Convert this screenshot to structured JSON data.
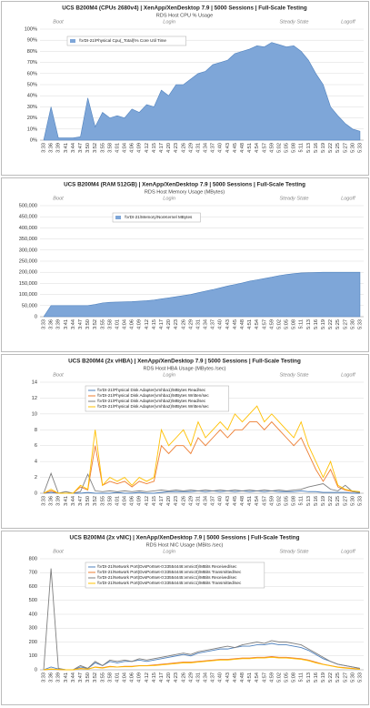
{
  "chart_data": [
    {
      "type": "area",
      "title": "UCS B200M4 (CPUs 2680v4) | XenApp/XenDesktop 7.9 | 5000 Sessions | Full-Scale Testing",
      "subtitle": "RDS Host CPU % Usage",
      "phases": [
        "Boot",
        "Login",
        "Steady State",
        "Logoff"
      ],
      "categories": [
        "3:33",
        "3:36",
        "3:39",
        "3:41",
        "3:44",
        "3:47",
        "3:50",
        "3:52",
        "3:55",
        "3:58",
        "4:01",
        "4:04",
        "4:06",
        "4:09",
        "4:12",
        "4:15",
        "4:17",
        "4:20",
        "4:23",
        "4:26",
        "4:29",
        "4:31",
        "4:34",
        "4:37",
        "4:40",
        "4:43",
        "4:45",
        "4:48",
        "4:51",
        "4:54",
        "4:57",
        "4:59",
        "5:02",
        "5:05",
        "5:08",
        "5:11",
        "5:13",
        "5:16",
        "5:19",
        "5:22",
        "5:25",
        "5:27",
        "5:30",
        "5:33"
      ],
      "series": [
        {
          "name": "\\\\VDI-21\\Physical Cpu(_Total)\\% Core Util Time",
          "color": "#7ea6d8",
          "values": [
            0,
            30,
            2,
            2,
            2,
            3,
            38,
            12,
            25,
            20,
            22,
            20,
            28,
            25,
            32,
            30,
            45,
            40,
            50,
            50,
            55,
            60,
            62,
            68,
            70,
            72,
            78,
            80,
            82,
            85,
            84,
            88,
            86,
            84,
            85,
            80,
            72,
            60,
            50,
            30,
            22,
            15,
            10,
            8
          ]
        }
      ],
      "ylim": [
        0,
        100
      ],
      "yticks": [
        {
          "value": 0,
          "label": "0%"
        },
        {
          "value": 10,
          "label": "10%"
        },
        {
          "value": 20,
          "label": "20%"
        },
        {
          "value": 30,
          "label": "30%"
        },
        {
          "value": 40,
          "label": "40%"
        },
        {
          "value": 50,
          "label": "50%"
        },
        {
          "value": 60,
          "label": "60%"
        },
        {
          "value": 70,
          "label": "70%"
        },
        {
          "value": 80,
          "label": "80%"
        },
        {
          "value": 90,
          "label": "90%"
        },
        {
          "value": 100,
          "label": "100%"
        }
      ],
      "grid": true
    },
    {
      "type": "area",
      "title": "UCS B200M4 (RAM 512GB) | XenApp/XenDesktop 7.9 | 5000 Sessions | Full-Scale Testing",
      "subtitle": "RDS Host Memory Usage (MBytes)",
      "phases": [
        "Boot",
        "Login",
        "Steady State",
        "Logoff"
      ],
      "categories": [
        "3:33",
        "3:36",
        "3:39",
        "3:41",
        "3:44",
        "3:47",
        "3:50",
        "3:52",
        "3:55",
        "3:58",
        "4:01",
        "4:04",
        "4:06",
        "4:09",
        "4:12",
        "4:15",
        "4:17",
        "4:20",
        "4:23",
        "4:26",
        "4:29",
        "4:31",
        "4:34",
        "4:37",
        "4:40",
        "4:43",
        "4:45",
        "4:48",
        "4:51",
        "4:54",
        "4:57",
        "4:59",
        "5:02",
        "5:05",
        "5:08",
        "5:11",
        "5:13",
        "5:16",
        "5:19",
        "5:22",
        "5:25",
        "5:27",
        "5:30",
        "5:33"
      ],
      "series": [
        {
          "name": "\\\\VDI-21\\Memory\\NonKernel MBytes",
          "color": "#7ea6d8",
          "values": [
            0,
            50000,
            50000,
            50000,
            50000,
            50000,
            50000,
            55000,
            62000,
            65000,
            66000,
            67000,
            68000,
            70000,
            72000,
            75000,
            80000,
            85000,
            90000,
            95000,
            100000,
            108000,
            115000,
            122000,
            130000,
            138000,
            145000,
            152000,
            160000,
            166000,
            172000,
            178000,
            185000,
            190000,
            194000,
            197000,
            198000,
            199000,
            200000,
            200000,
            200000,
            200000,
            200000,
            200000
          ]
        }
      ],
      "ylim": [
        0,
        500000
      ],
      "yticks": [
        0,
        {
          "value": 50000,
          "label": "50,000"
        },
        {
          "value": 100000,
          "label": "100,000"
        },
        {
          "value": 150000,
          "label": "150,000"
        },
        {
          "value": 200000,
          "label": "200,000"
        },
        {
          "value": 250000,
          "label": "250,000"
        },
        {
          "value": 300000,
          "label": "300,000"
        },
        {
          "value": 350000,
          "label": "350,000"
        },
        {
          "value": 400000,
          "label": "400,000"
        },
        {
          "value": 450000,
          "label": "450,000"
        },
        {
          "value": 500000,
          "label": "500,000"
        }
      ],
      "grid": true
    },
    {
      "type": "line",
      "title": "UCS B200M4 (2x vHBA) | XenApp/XenDesktop 7.9 | 5000 Sessions | Full-Scale Testing",
      "subtitle": "RDS Host HBA Usage (MBytes /sec)",
      "phases": [
        "Boot",
        "Login",
        "Steady State",
        "Logoff"
      ],
      "categories": [
        "3:33",
        "3:36",
        "3:39",
        "3:41",
        "3:44",
        "3:47",
        "3:50",
        "3:52",
        "3:55",
        "3:58",
        "4:01",
        "4:04",
        "4:06",
        "4:09",
        "4:12",
        "4:15",
        "4:17",
        "4:20",
        "4:23",
        "4:26",
        "4:29",
        "4:31",
        "4:34",
        "4:37",
        "4:40",
        "4:43",
        "4:45",
        "4:48",
        "4:51",
        "4:54",
        "4:57",
        "4:59",
        "5:02",
        "5:05",
        "5:08",
        "5:11",
        "5:13",
        "5:16",
        "5:19",
        "5:22",
        "5:25",
        "5:27",
        "5:30",
        "5:33"
      ],
      "series": [
        {
          "name": "\\\\VDI-21\\Physical Disk Adapter(vmhba1)\\MBytes Read/sec",
          "color": "#4f81bd",
          "values": [
            0,
            0.1,
            0,
            0,
            0,
            0,
            0.1,
            0,
            0,
            0,
            0.1,
            0,
            0,
            0.1,
            0,
            0,
            0.1,
            0.2,
            0.2,
            0.2,
            0.2,
            0.3,
            0.2,
            0.3,
            0.2,
            0.3,
            0.2,
            0.3,
            0.2,
            0.3,
            0.2,
            0.3,
            0.2,
            0.2,
            0.2,
            0.3,
            0.2,
            0.2,
            0.1,
            0.1,
            0.1,
            0.1,
            0,
            0
          ]
        },
        {
          "name": "\\\\VDI-21\\Physical Disk Adapter(vmhba1)\\MBytes Written/sec",
          "color": "#ed7d31",
          "values": [
            0,
            0.3,
            0,
            0,
            0,
            0.8,
            0.4,
            6,
            1,
            1.5,
            1.2,
            1.5,
            0.8,
            1.5,
            1.2,
            1.5,
            6,
            5,
            6,
            6,
            5,
            7,
            6,
            7,
            8,
            7,
            8,
            8,
            9,
            9,
            8,
            9,
            8,
            7,
            6,
            7,
            5,
            3,
            1.5,
            3,
            0.8,
            0.4,
            0.2,
            0.1
          ]
        },
        {
          "name": "\\\\VDI-21\\Physical Disk Adapter(vmhba2)\\MBytes Read/sec",
          "color": "#7f7f7f",
          "values": [
            0,
            2.5,
            0,
            0.2,
            0,
            0.2,
            2.4,
            0.3,
            0.2,
            0.3,
            0.2,
            0.3,
            0.2,
            0.3,
            0.2,
            0.3,
            0.4,
            0.3,
            0.4,
            0.3,
            0.4,
            0.3,
            0.4,
            0.3,
            0.4,
            0.3,
            0.4,
            0.3,
            0.4,
            0.3,
            0.4,
            0.3,
            0.4,
            0.3,
            0.4,
            0.5,
            0.8,
            1,
            1.2,
            0.5,
            0.3,
            1,
            0.2,
            0.1
          ]
        },
        {
          "name": "\\\\VDI-21\\Physical Disk Adapter(vmhba2)\\MBytes Written/sec",
          "color": "#ffc000",
          "values": [
            0,
            0.5,
            0,
            0,
            0,
            1,
            0.5,
            8,
            1,
            2,
            1.5,
            2,
            1,
            2,
            1.5,
            2,
            8,
            6,
            7,
            8,
            6,
            9,
            7,
            8,
            9,
            8,
            10,
            9,
            10,
            11,
            9,
            10,
            9,
            8,
            7,
            9,
            6,
            4,
            2,
            4,
            1,
            0.5,
            0.3,
            0.2
          ]
        }
      ],
      "ylim": [
        0,
        14
      ],
      "yticks": [
        0,
        2,
        4,
        6,
        8,
        10,
        12,
        14
      ],
      "grid": true
    },
    {
      "type": "line",
      "title": "UCS B200M4 (2x vNIC) | XenApp/XenDesktop 7.9 | 5000 Sessions | Full-Scale Testing",
      "subtitle": "RDS Host NIC Usage (MBits /sec)",
      "phases": [
        "Boot",
        "Login",
        "Steady State",
        "Logoff"
      ],
      "categories": [
        "3:33",
        "3:36",
        "3:39",
        "3:41",
        "3:44",
        "3:47",
        "3:50",
        "3:52",
        "3:55",
        "3:58",
        "4:01",
        "4:04",
        "4:06",
        "4:09",
        "4:12",
        "4:15",
        "4:17",
        "4:20",
        "4:23",
        "4:26",
        "4:29",
        "4:31",
        "4:34",
        "4:37",
        "4:40",
        "4:43",
        "4:45",
        "4:48",
        "4:51",
        "4:54",
        "4:57",
        "4:59",
        "5:02",
        "5:05",
        "5:08",
        "5:11",
        "5:13",
        "5:16",
        "5:19",
        "5:22",
        "5:25",
        "5:27",
        "5:30",
        "5:33"
      ],
      "series": [
        {
          "name": "\\\\VDI-21\\Network Port(DvsPortset-0:33554446:vmnic0)\\MBits Received/sec",
          "color": "#4f81bd",
          "values": [
            0,
            20,
            5,
            0,
            0,
            20,
            10,
            50,
            30,
            60,
            50,
            60,
            60,
            70,
            60,
            70,
            80,
            90,
            100,
            110,
            100,
            120,
            130,
            140,
            150,
            150,
            160,
            170,
            170,
            180,
            180,
            190,
            180,
            180,
            170,
            160,
            140,
            110,
            80,
            60,
            40,
            30,
            20,
            10
          ]
        },
        {
          "name": "\\\\VDI-21\\Network Port(DvsPortset-0:33554446:vmnic0)\\MBits Transmitted/sec",
          "color": "#ed7d31",
          "values": [
            0,
            5,
            2,
            0,
            0,
            10,
            5,
            20,
            15,
            25,
            20,
            25,
            25,
            30,
            30,
            35,
            40,
            45,
            50,
            55,
            55,
            60,
            65,
            70,
            75,
            75,
            80,
            85,
            85,
            90,
            90,
            95,
            90,
            90,
            85,
            80,
            70,
            55,
            40,
            30,
            20,
            15,
            10,
            5
          ]
        },
        {
          "name": "\\\\VDI-21\\Network Port(DvsPortset-0:33554445:vmnic1)\\MBits Received/sec",
          "color": "#7f7f7f",
          "values": [
            0,
            730,
            10,
            0,
            0,
            30,
            10,
            60,
            30,
            70,
            60,
            70,
            60,
            80,
            70,
            80,
            90,
            100,
            110,
            120,
            110,
            130,
            140,
            150,
            160,
            170,
            160,
            180,
            190,
            200,
            190,
            210,
            200,
            200,
            190,
            180,
            150,
            120,
            90,
            60,
            40,
            30,
            20,
            10
          ]
        },
        {
          "name": "\\\\VDI-21\\Network Port(DvsPortset-0:33554445:vmnic1)\\MBits Transmitted/sec",
          "color": "#ffc000",
          "values": [
            0,
            5,
            2,
            0,
            0,
            8,
            5,
            18,
            12,
            22,
            20,
            22,
            22,
            28,
            28,
            30,
            35,
            40,
            45,
            50,
            50,
            55,
            60,
            65,
            70,
            70,
            75,
            80,
            80,
            85,
            85,
            90,
            85,
            85,
            80,
            75,
            65,
            50,
            38,
            28,
            18,
            12,
            8,
            4
          ]
        }
      ],
      "ylim": [
        0,
        800
      ],
      "yticks": [
        0,
        100,
        200,
        300,
        400,
        500,
        600,
        700,
        800
      ],
      "grid": true
    }
  ]
}
